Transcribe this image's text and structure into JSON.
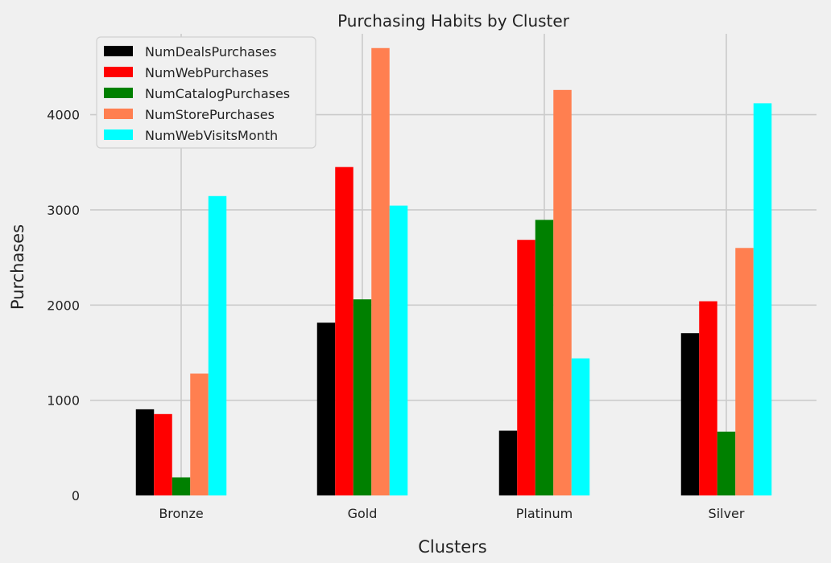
{
  "chart_data": {
    "type": "bar",
    "title": "Purchasing Habits by Cluster",
    "xlabel": "Clusters",
    "ylabel": "Purchases",
    "categories": [
      "Bronze",
      "Gold",
      "Platinum",
      "Silver"
    ],
    "ylim": [
      0,
      4850
    ],
    "yticks": [
      0,
      1000,
      2000,
      3000,
      4000
    ],
    "grid": true,
    "legend_position": "top-left",
    "series": [
      {
        "name": "NumDealsPurchases",
        "color": "#000000",
        "values": [
          905,
          1815,
          680,
          1705
        ]
      },
      {
        "name": "NumWebPurchases",
        "color": "#ff0000",
        "values": [
          855,
          3450,
          2685,
          2040
        ]
      },
      {
        "name": "NumCatalogPurchases",
        "color": "#008000",
        "values": [
          190,
          2060,
          2895,
          670
        ]
      },
      {
        "name": "NumStorePurchases",
        "color": "#ff7f50",
        "values": [
          1280,
          4700,
          4260,
          2600
        ]
      },
      {
        "name": "NumWebVisitsMonth",
        "color": "#00ffff",
        "values": [
          3145,
          3045,
          1440,
          4120
        ]
      }
    ]
  }
}
